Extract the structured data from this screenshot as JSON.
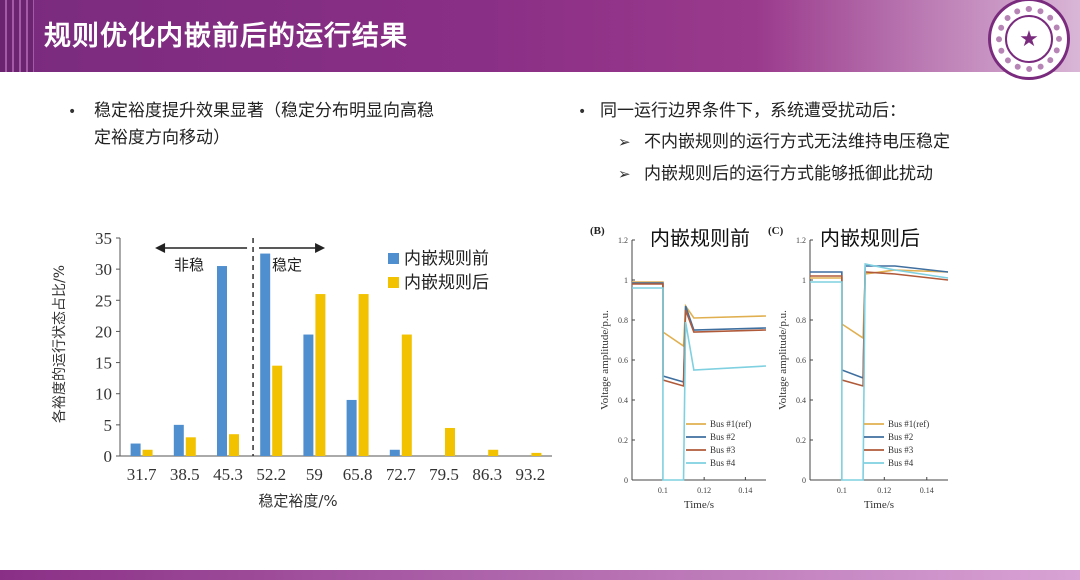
{
  "header": {
    "title": "规则优化内嵌前后的运行结果",
    "logo_glyph": "★"
  },
  "left_bullet": {
    "line1": "稳定裕度提升效果显著（稳定分布明显向高稳",
    "line2": "定裕度方向移动）"
  },
  "right_bullets": {
    "main": "同一运行边界条件下，系统遭受扰动后：",
    "sub1": "不内嵌规则的运行方式无法维持电压稳定",
    "sub2": "内嵌规则后的运行方式能够抵御此扰动"
  },
  "colors": {
    "header": "#7a2b7e",
    "before": "#4f8fcf",
    "after": "#f2c200",
    "bus1": "#e0b050",
    "bus2": "#3f6f9f",
    "bus3": "#b05a3a",
    "bus4": "#7fd0e0"
  },
  "chart_data": [
    {
      "type": "bar",
      "categories": [
        "31.7",
        "38.5",
        "45.3",
        "52.2",
        "59",
        "65.8",
        "72.7",
        "79.5",
        "86.3",
        "93.2"
      ],
      "series": [
        {
          "name": "内嵌规则前",
          "values": [
            2,
            5,
            30.5,
            32.5,
            19.5,
            9,
            1,
            0,
            0,
            0
          ]
        },
        {
          "name": "内嵌规则后",
          "values": [
            1,
            3,
            3.5,
            14.5,
            26,
            26,
            19.5,
            4.5,
            1,
            0.5
          ]
        }
      ],
      "xlabel": "稳定裕度/%",
      "ylabel": "各裕度的运行状态占比/%",
      "ylim": [
        0,
        35
      ],
      "yticks": [
        "0",
        "5",
        "10",
        "15",
        "20",
        "25",
        "30",
        "35"
      ],
      "annotations": {
        "unstable": "非稳",
        "stable": "稳定"
      },
      "legend": "top-right"
    },
    {
      "type": "line",
      "panel_label": "(B)",
      "title": "内嵌规则前",
      "xlabel": "Time/s",
      "ylabel": "Voltage amplitude/p.u.",
      "xticks": [
        "0.1",
        "0.12",
        "0.14"
      ],
      "yticks": [
        "0",
        "0.2",
        "0.4",
        "0.6",
        "0.8",
        "1",
        "1.2"
      ],
      "ylim": [
        0,
        1.2
      ],
      "xlim": [
        0.085,
        0.15
      ],
      "series": [
        {
          "name": "Bus #1(ref)",
          "x": [
            0.085,
            0.1,
            0.1,
            0.11,
            0.111,
            0.115,
            0.15
          ],
          "y": [
            0.99,
            0.99,
            0.74,
            0.67,
            0.87,
            0.81,
            0.82
          ]
        },
        {
          "name": "Bus #2",
          "x": [
            0.085,
            0.1,
            0.1,
            0.11,
            0.111,
            0.115,
            0.15
          ],
          "y": [
            0.985,
            0.985,
            0.52,
            0.49,
            0.87,
            0.75,
            0.76
          ]
        },
        {
          "name": "Bus #3",
          "x": [
            0.085,
            0.1,
            0.1,
            0.11,
            0.111,
            0.115,
            0.15
          ],
          "y": [
            0.98,
            0.98,
            0.5,
            0.47,
            0.85,
            0.74,
            0.75
          ]
        },
        {
          "name": "Bus #4",
          "x": [
            0.085,
            0.1,
            0.1,
            0.11,
            0.111,
            0.115,
            0.15
          ],
          "y": [
            0.96,
            0.96,
            0.0,
            0.0,
            0.79,
            0.55,
            0.57
          ]
        }
      ]
    },
    {
      "type": "line",
      "panel_label": "(C)",
      "title": "内嵌规则后",
      "xlabel": "Time/s",
      "ylabel": "Voltage amplitude/p.u.",
      "xticks": [
        "0.1",
        "0.12",
        "0.14"
      ],
      "yticks": [
        "0",
        "0.2",
        "0.4",
        "0.6",
        "0.8",
        "1",
        "1.2"
      ],
      "ylim": [
        0,
        1.2
      ],
      "xlim": [
        0.085,
        0.15
      ],
      "series": [
        {
          "name": "Bus #1(ref)",
          "x": [
            0.085,
            0.1,
            0.1,
            0.11,
            0.111,
            0.125,
            0.15
          ],
          "y": [
            1.01,
            1.01,
            0.78,
            0.71,
            1.03,
            1.05,
            1.04
          ]
        },
        {
          "name": "Bus #2",
          "x": [
            0.085,
            0.1,
            0.1,
            0.11,
            0.111,
            0.125,
            0.15
          ],
          "y": [
            1.04,
            1.04,
            0.55,
            0.51,
            1.07,
            1.07,
            1.04
          ]
        },
        {
          "name": "Bus #3",
          "x": [
            0.085,
            0.1,
            0.1,
            0.11,
            0.111,
            0.125,
            0.15
          ],
          "y": [
            1.02,
            1.02,
            0.5,
            0.47,
            1.04,
            1.03,
            1.0
          ]
        },
        {
          "name": "Bus #4",
          "x": [
            0.085,
            0.1,
            0.1,
            0.11,
            0.111,
            0.125,
            0.15
          ],
          "y": [
            0.99,
            0.99,
            0.0,
            0.0,
            1.08,
            1.05,
            1.01
          ]
        }
      ]
    }
  ]
}
